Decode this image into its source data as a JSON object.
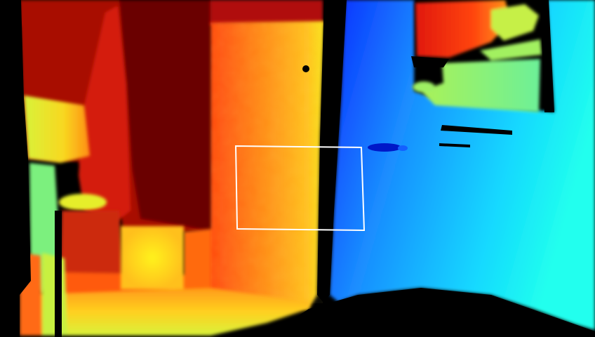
{
  "image": {
    "kind": "depth-map",
    "colormap": "jet",
    "background_color": "#000000"
  },
  "overlay": {
    "shape": "rectangle",
    "stroke_color": "#ffffff"
  },
  "colors": {
    "near_red": "#c8100c",
    "dark_red": "#6e0000",
    "orange": "#ff6a10",
    "yellow": "#f6e21c",
    "yellow_green": "#c8f040",
    "green": "#8cf07a",
    "blue": "#0a3cff",
    "cyan": "#18f0ff"
  }
}
